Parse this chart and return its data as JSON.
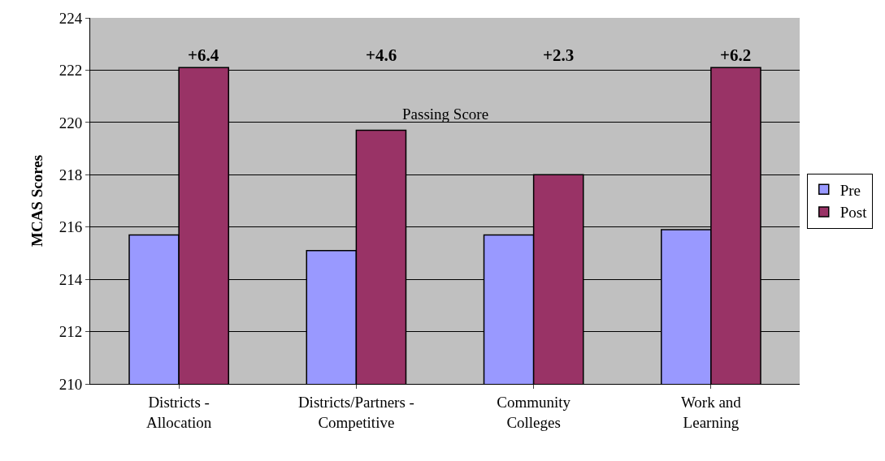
{
  "chart_data": {
    "type": "bar",
    "ylabel": "MCAS Scores",
    "categories": [
      "Districts -\nAllocation",
      "Districts/Partners -\nCompetitive",
      "Community\nColleges",
      "Work and\nLearning"
    ],
    "series": [
      {
        "name": "Pre",
        "color": "#9999ff",
        "values": [
          215.7,
          215.1,
          215.7,
          215.9
        ]
      },
      {
        "name": "Post",
        "color": "#993366",
        "values": [
          222.1,
          219.7,
          218.0,
          222.1
        ]
      }
    ],
    "ylim": [
      210,
      224
    ],
    "yticks": [
      210,
      212,
      214,
      216,
      218,
      220,
      222,
      224
    ],
    "grid": "y",
    "legend": "right",
    "annotations": [
      "+6.4",
      "+4.6",
      "+2.3",
      "+6.2",
      "Passing Score"
    ]
  }
}
